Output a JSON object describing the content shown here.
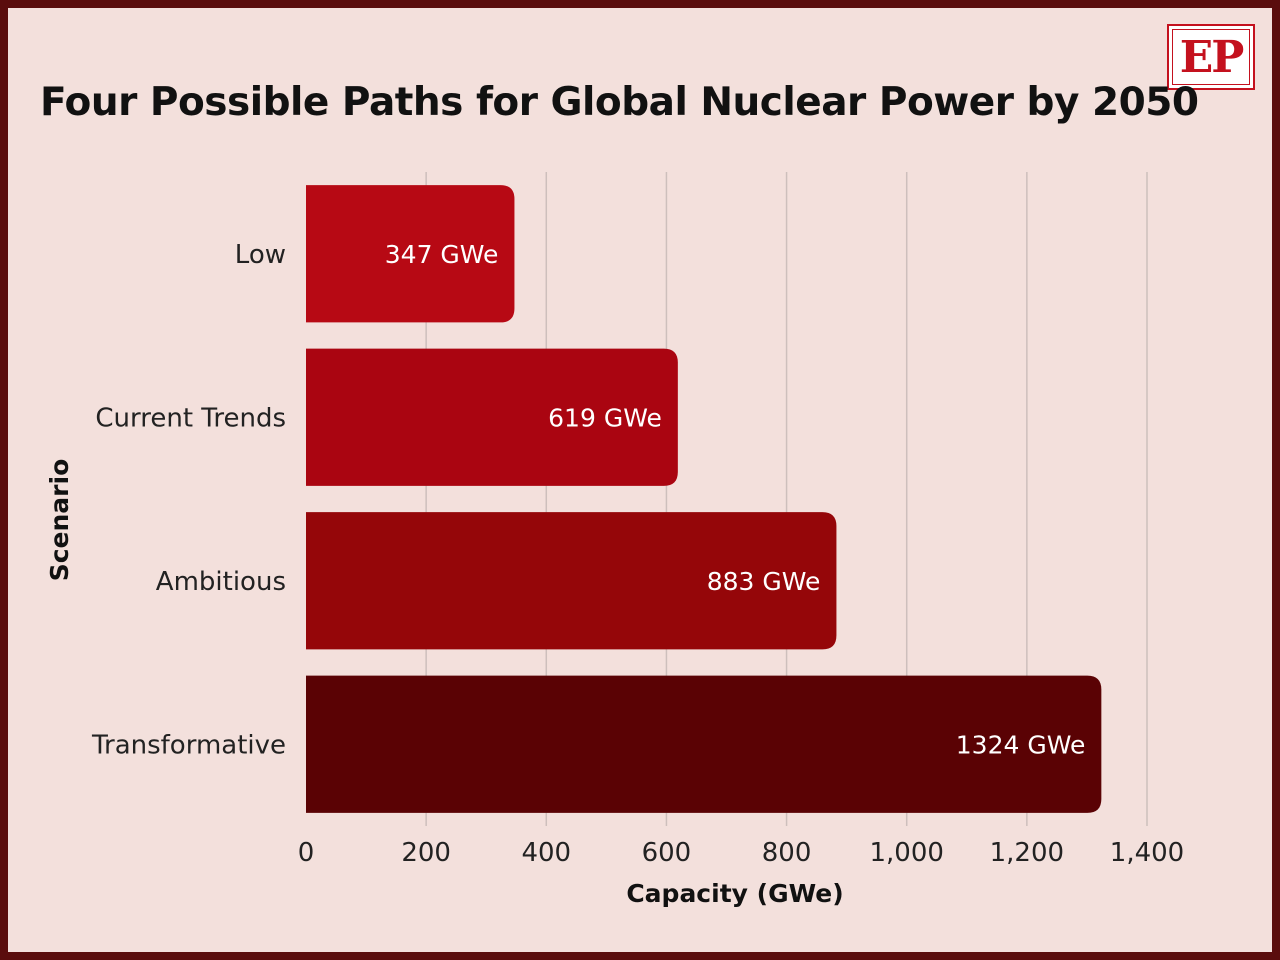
{
  "title": "Four Possible Paths for Global Nuclear Power by 2050",
  "logo_text": "EP",
  "colors": {
    "background": "#f3e0dc",
    "border": "#5a0d0d",
    "logo_red": "#c4111e",
    "grid": "#cdbfbc"
  },
  "chart_data": {
    "type": "bar",
    "orientation": "horizontal",
    "title": "Four Possible Paths for Global Nuclear Power by 2050",
    "xlabel": "Capacity (GWe)",
    "ylabel": "Scenario",
    "categories": [
      "Low",
      "Current Trends",
      "Ambitious",
      "Transformative"
    ],
    "values": [
      347,
      619,
      883,
      1324
    ],
    "value_labels": [
      "347 GWe",
      "619 GWe",
      "883 GWe",
      "1324 GWe"
    ],
    "bar_colors": [
      "#b70914",
      "#aa0511",
      "#950609",
      "#5a0204"
    ],
    "xlim": [
      0,
      1400
    ],
    "xticks": [
      0,
      200,
      400,
      600,
      800,
      1000,
      1200,
      1400
    ],
    "xtick_labels": [
      "0",
      "200",
      "400",
      "600",
      "800",
      "1,000",
      "1,200",
      "1,400"
    ],
    "grid": "vertical",
    "legend": "none"
  }
}
